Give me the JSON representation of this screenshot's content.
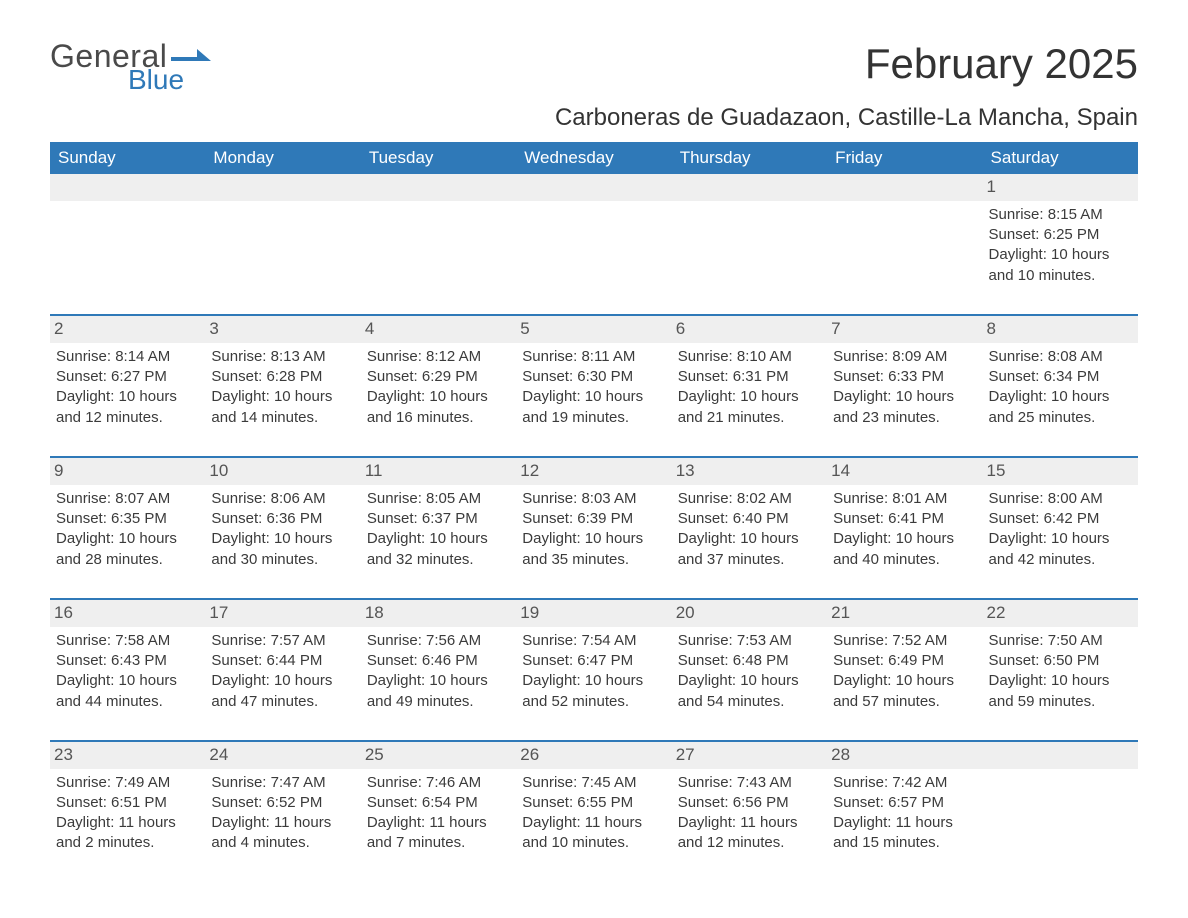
{
  "logo": {
    "word1": "General",
    "word2": "Blue",
    "flag_color": "#2f79b8",
    "text_color": "#4a4a4a"
  },
  "title": "February 2025",
  "location": "Carboneras de Guadazaon, Castille-La Mancha, Spain",
  "header_bg": "#2f79b8",
  "daynum_bg": "#efefef",
  "weekdays": [
    "Sunday",
    "Monday",
    "Tuesday",
    "Wednesday",
    "Thursday",
    "Friday",
    "Saturday"
  ],
  "weeks": [
    [
      null,
      null,
      null,
      null,
      null,
      null,
      {
        "n": "1",
        "sunrise": "Sunrise: 8:15 AM",
        "sunset": "Sunset: 6:25 PM",
        "d1": "Daylight: 10 hours",
        "d2": "and 10 minutes."
      }
    ],
    [
      {
        "n": "2",
        "sunrise": "Sunrise: 8:14 AM",
        "sunset": "Sunset: 6:27 PM",
        "d1": "Daylight: 10 hours",
        "d2": "and 12 minutes."
      },
      {
        "n": "3",
        "sunrise": "Sunrise: 8:13 AM",
        "sunset": "Sunset: 6:28 PM",
        "d1": "Daylight: 10 hours",
        "d2": "and 14 minutes."
      },
      {
        "n": "4",
        "sunrise": "Sunrise: 8:12 AM",
        "sunset": "Sunset: 6:29 PM",
        "d1": "Daylight: 10 hours",
        "d2": "and 16 minutes."
      },
      {
        "n": "5",
        "sunrise": "Sunrise: 8:11 AM",
        "sunset": "Sunset: 6:30 PM",
        "d1": "Daylight: 10 hours",
        "d2": "and 19 minutes."
      },
      {
        "n": "6",
        "sunrise": "Sunrise: 8:10 AM",
        "sunset": "Sunset: 6:31 PM",
        "d1": "Daylight: 10 hours",
        "d2": "and 21 minutes."
      },
      {
        "n": "7",
        "sunrise": "Sunrise: 8:09 AM",
        "sunset": "Sunset: 6:33 PM",
        "d1": "Daylight: 10 hours",
        "d2": "and 23 minutes."
      },
      {
        "n": "8",
        "sunrise": "Sunrise: 8:08 AM",
        "sunset": "Sunset: 6:34 PM",
        "d1": "Daylight: 10 hours",
        "d2": "and 25 minutes."
      }
    ],
    [
      {
        "n": "9",
        "sunrise": "Sunrise: 8:07 AM",
        "sunset": "Sunset: 6:35 PM",
        "d1": "Daylight: 10 hours",
        "d2": "and 28 minutes."
      },
      {
        "n": "10",
        "sunrise": "Sunrise: 8:06 AM",
        "sunset": "Sunset: 6:36 PM",
        "d1": "Daylight: 10 hours",
        "d2": "and 30 minutes."
      },
      {
        "n": "11",
        "sunrise": "Sunrise: 8:05 AM",
        "sunset": "Sunset: 6:37 PM",
        "d1": "Daylight: 10 hours",
        "d2": "and 32 minutes."
      },
      {
        "n": "12",
        "sunrise": "Sunrise: 8:03 AM",
        "sunset": "Sunset: 6:39 PM",
        "d1": "Daylight: 10 hours",
        "d2": "and 35 minutes."
      },
      {
        "n": "13",
        "sunrise": "Sunrise: 8:02 AM",
        "sunset": "Sunset: 6:40 PM",
        "d1": "Daylight: 10 hours",
        "d2": "and 37 minutes."
      },
      {
        "n": "14",
        "sunrise": "Sunrise: 8:01 AM",
        "sunset": "Sunset: 6:41 PM",
        "d1": "Daylight: 10 hours",
        "d2": "and 40 minutes."
      },
      {
        "n": "15",
        "sunrise": "Sunrise: 8:00 AM",
        "sunset": "Sunset: 6:42 PM",
        "d1": "Daylight: 10 hours",
        "d2": "and 42 minutes."
      }
    ],
    [
      {
        "n": "16",
        "sunrise": "Sunrise: 7:58 AM",
        "sunset": "Sunset: 6:43 PM",
        "d1": "Daylight: 10 hours",
        "d2": "and 44 minutes."
      },
      {
        "n": "17",
        "sunrise": "Sunrise: 7:57 AM",
        "sunset": "Sunset: 6:44 PM",
        "d1": "Daylight: 10 hours",
        "d2": "and 47 minutes."
      },
      {
        "n": "18",
        "sunrise": "Sunrise: 7:56 AM",
        "sunset": "Sunset: 6:46 PM",
        "d1": "Daylight: 10 hours",
        "d2": "and 49 minutes."
      },
      {
        "n": "19",
        "sunrise": "Sunrise: 7:54 AM",
        "sunset": "Sunset: 6:47 PM",
        "d1": "Daylight: 10 hours",
        "d2": "and 52 minutes."
      },
      {
        "n": "20",
        "sunrise": "Sunrise: 7:53 AM",
        "sunset": "Sunset: 6:48 PM",
        "d1": "Daylight: 10 hours",
        "d2": "and 54 minutes."
      },
      {
        "n": "21",
        "sunrise": "Sunrise: 7:52 AM",
        "sunset": "Sunset: 6:49 PM",
        "d1": "Daylight: 10 hours",
        "d2": "and 57 minutes."
      },
      {
        "n": "22",
        "sunrise": "Sunrise: 7:50 AM",
        "sunset": "Sunset: 6:50 PM",
        "d1": "Daylight: 10 hours",
        "d2": "and 59 minutes."
      }
    ],
    [
      {
        "n": "23",
        "sunrise": "Sunrise: 7:49 AM",
        "sunset": "Sunset: 6:51 PM",
        "d1": "Daylight: 11 hours",
        "d2": "and 2 minutes."
      },
      {
        "n": "24",
        "sunrise": "Sunrise: 7:47 AM",
        "sunset": "Sunset: 6:52 PM",
        "d1": "Daylight: 11 hours",
        "d2": "and 4 minutes."
      },
      {
        "n": "25",
        "sunrise": "Sunrise: 7:46 AM",
        "sunset": "Sunset: 6:54 PM",
        "d1": "Daylight: 11 hours",
        "d2": "and 7 minutes."
      },
      {
        "n": "26",
        "sunrise": "Sunrise: 7:45 AM",
        "sunset": "Sunset: 6:55 PM",
        "d1": "Daylight: 11 hours",
        "d2": "and 10 minutes."
      },
      {
        "n": "27",
        "sunrise": "Sunrise: 7:43 AM",
        "sunset": "Sunset: 6:56 PM",
        "d1": "Daylight: 11 hours",
        "d2": "and 12 minutes."
      },
      {
        "n": "28",
        "sunrise": "Sunrise: 7:42 AM",
        "sunset": "Sunset: 6:57 PM",
        "d1": "Daylight: 11 hours",
        "d2": "and 15 minutes."
      },
      null
    ]
  ]
}
